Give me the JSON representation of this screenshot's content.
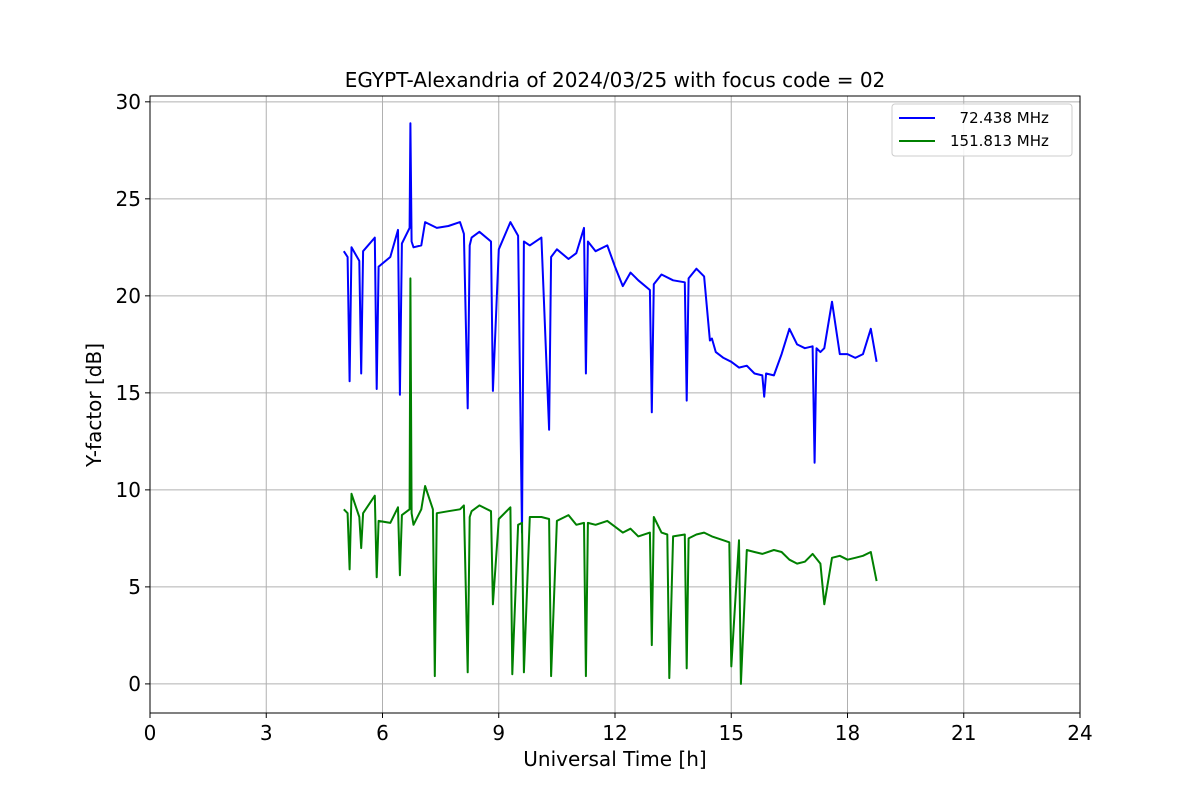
{
  "chart_data": {
    "type": "line",
    "title": "EGYPT-Alexandria of 2024/03/25 with focus code = 02",
    "xlabel": "Universal Time [h]",
    "ylabel": "Y-factor [dB]",
    "xlim": [
      0,
      24
    ],
    "ylim": [
      -1.5,
      30.3
    ],
    "xticks": [
      0,
      3,
      6,
      9,
      12,
      15,
      18,
      21,
      24
    ],
    "yticks": [
      0,
      5,
      10,
      15,
      20,
      25,
      30
    ],
    "grid": true,
    "legend_position": "top-right",
    "series": [
      {
        "name": "  72.438 MHz",
        "color": "#0000ff",
        "x": [
          5.0,
          5.1,
          5.15,
          5.2,
          5.4,
          5.45,
          5.5,
          5.8,
          5.85,
          5.9,
          6.2,
          6.4,
          6.45,
          6.5,
          6.7,
          6.72,
          6.75,
          6.8,
          7.0,
          7.1,
          7.4,
          7.7,
          8.0,
          8.1,
          8.2,
          8.25,
          8.3,
          8.5,
          8.8,
          8.85,
          9.0,
          9.3,
          9.5,
          9.6,
          9.65,
          9.8,
          10.1,
          10.3,
          10.35,
          10.5,
          10.8,
          11.0,
          11.2,
          11.25,
          11.3,
          11.5,
          11.8,
          12.0,
          12.2,
          12.4,
          12.6,
          12.9,
          12.95,
          13.0,
          13.2,
          13.5,
          13.8,
          13.85,
          13.9,
          14.1,
          14.3,
          14.45,
          14.5,
          14.6,
          14.8,
          15.0,
          15.2,
          15.4,
          15.6,
          15.8,
          15.85,
          15.9,
          16.1,
          16.3,
          16.5,
          16.7,
          16.9,
          17.1,
          17.15,
          17.2,
          17.3,
          17.4,
          17.6,
          17.8,
          18.0,
          18.2,
          18.4,
          18.6,
          18.75
        ],
        "y": [
          22.3,
          22.0,
          15.6,
          22.5,
          21.8,
          16.0,
          22.3,
          23.0,
          15.2,
          21.5,
          22.0,
          23.4,
          14.9,
          22.7,
          23.5,
          28.9,
          22.8,
          22.5,
          22.6,
          23.8,
          23.5,
          23.6,
          23.8,
          23.2,
          14.2,
          22.6,
          23.0,
          23.3,
          22.8,
          15.1,
          22.4,
          23.8,
          23.1,
          7.8,
          22.8,
          22.6,
          23.0,
          13.1,
          22.0,
          22.4,
          21.9,
          22.2,
          23.5,
          16.0,
          22.8,
          22.3,
          22.6,
          21.5,
          20.5,
          21.2,
          20.8,
          20.3,
          14.0,
          20.6,
          21.1,
          20.8,
          20.7,
          14.6,
          20.9,
          21.4,
          21.0,
          17.7,
          17.8,
          17.1,
          16.8,
          16.6,
          16.3,
          16.4,
          16.0,
          15.9,
          14.8,
          16.0,
          15.9,
          17.0,
          18.3,
          17.5,
          17.3,
          17.4,
          11.4,
          17.3,
          17.1,
          17.3,
          19.7,
          17.0,
          17.0,
          16.8,
          17.0,
          18.3,
          16.6
        ]
      },
      {
        "name": "151.813 MHz",
        "color": "#008000",
        "x": [
          5.0,
          5.1,
          5.15,
          5.2,
          5.4,
          5.45,
          5.5,
          5.8,
          5.85,
          5.9,
          6.2,
          6.4,
          6.45,
          6.5,
          6.7,
          6.72,
          6.75,
          6.8,
          7.0,
          7.1,
          7.3,
          7.35,
          7.4,
          7.7,
          8.0,
          8.1,
          8.2,
          8.25,
          8.3,
          8.5,
          8.8,
          8.85,
          9.0,
          9.3,
          9.35,
          9.5,
          9.6,
          9.65,
          9.8,
          10.1,
          10.3,
          10.35,
          10.5,
          10.8,
          11.0,
          11.2,
          11.25,
          11.3,
          11.5,
          11.8,
          12.0,
          12.2,
          12.4,
          12.6,
          12.9,
          12.95,
          13.0,
          13.2,
          13.35,
          13.4,
          13.5,
          13.8,
          13.85,
          13.9,
          14.1,
          14.3,
          14.5,
          14.8,
          14.95,
          15.0,
          15.2,
          15.25,
          15.4,
          15.6,
          15.8,
          16.1,
          16.3,
          16.5,
          16.7,
          16.9,
          17.1,
          17.3,
          17.4,
          17.6,
          17.8,
          18.0,
          18.2,
          18.4,
          18.6,
          18.75
        ],
        "y": [
          9.0,
          8.8,
          5.9,
          9.8,
          8.6,
          7.0,
          8.8,
          9.7,
          5.5,
          8.4,
          8.3,
          9.1,
          5.6,
          8.7,
          9.0,
          20.9,
          8.8,
          8.2,
          9.0,
          10.2,
          9.0,
          0.4,
          8.8,
          8.9,
          9.0,
          9.2,
          0.6,
          8.6,
          8.9,
          9.2,
          8.9,
          4.1,
          8.5,
          9.1,
          0.5,
          8.2,
          8.3,
          0.6,
          8.6,
          8.6,
          8.5,
          0.4,
          8.4,
          8.7,
          8.2,
          8.3,
          0.4,
          8.3,
          8.2,
          8.4,
          8.1,
          7.8,
          8.0,
          7.6,
          7.8,
          2.0,
          8.6,
          7.8,
          7.7,
          0.3,
          7.6,
          7.7,
          0.8,
          7.5,
          7.7,
          7.8,
          7.6,
          7.4,
          7.3,
          0.9,
          7.4,
          0.0,
          6.9,
          6.8,
          6.7,
          6.9,
          6.8,
          6.4,
          6.2,
          6.3,
          6.7,
          6.2,
          4.1,
          6.5,
          6.6,
          6.4,
          6.5,
          6.6,
          6.8,
          5.3
        ]
      }
    ]
  }
}
